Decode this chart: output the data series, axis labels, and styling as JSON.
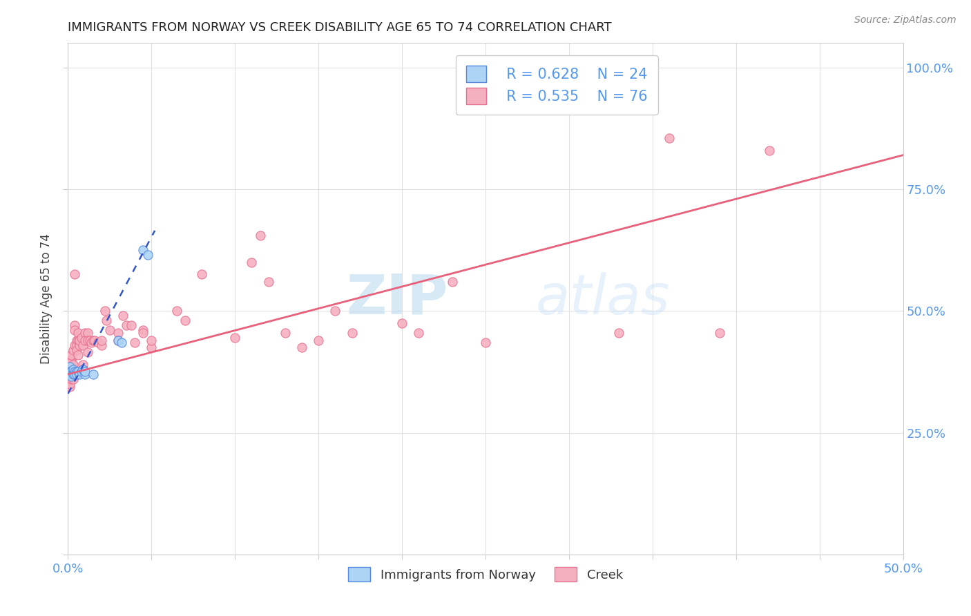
{
  "title": "IMMIGRANTS FROM NORWAY VS CREEK DISABILITY AGE 65 TO 74 CORRELATION CHART",
  "source": "Source: ZipAtlas.com",
  "ylabel": "Disability Age 65 to 74",
  "xlim": [
    0.0,
    0.5
  ],
  "ylim": [
    0.0,
    1.05
  ],
  "xticks": [
    0.0,
    0.05,
    0.1,
    0.15,
    0.2,
    0.25,
    0.3,
    0.35,
    0.4,
    0.45,
    0.5
  ],
  "yticks": [
    0.0,
    0.25,
    0.5,
    0.75,
    1.0
  ],
  "yticklabels": [
    "",
    "25.0%",
    "50.0%",
    "75.0%",
    "100.0%"
  ],
  "norway_color": "#add4f5",
  "creek_color": "#f5b0c0",
  "norway_edge_color": "#5588dd",
  "creek_edge_color": "#e87090",
  "norway_line_color": "#3355cc",
  "creek_line_color": "#e8607a",
  "norway_scatter": [
    [
      0.001,
      0.375
    ],
    [
      0.001,
      0.385
    ],
    [
      0.001,
      0.375
    ],
    [
      0.002,
      0.37
    ],
    [
      0.002,
      0.375
    ],
    [
      0.002,
      0.365
    ],
    [
      0.003,
      0.375
    ],
    [
      0.003,
      0.38
    ],
    [
      0.003,
      0.37
    ],
    [
      0.004,
      0.375
    ],
    [
      0.004,
      0.37
    ],
    [
      0.005,
      0.375
    ],
    [
      0.005,
      0.37
    ],
    [
      0.006,
      0.375
    ],
    [
      0.007,
      0.37
    ],
    [
      0.008,
      0.375
    ],
    [
      0.009,
      0.38
    ],
    [
      0.01,
      0.37
    ],
    [
      0.01,
      0.375
    ],
    [
      0.015,
      0.37
    ],
    [
      0.03,
      0.44
    ],
    [
      0.032,
      0.435
    ],
    [
      0.045,
      0.625
    ],
    [
      0.048,
      0.615
    ]
  ],
  "creek_scatter": [
    [
      0.001,
      0.37
    ],
    [
      0.001,
      0.375
    ],
    [
      0.001,
      0.38
    ],
    [
      0.001,
      0.365
    ],
    [
      0.001,
      0.36
    ],
    [
      0.001,
      0.355
    ],
    [
      0.001,
      0.345
    ],
    [
      0.001,
      0.35
    ],
    [
      0.002,
      0.38
    ],
    [
      0.002,
      0.37
    ],
    [
      0.002,
      0.4
    ],
    [
      0.002,
      0.395
    ],
    [
      0.002,
      0.36
    ],
    [
      0.002,
      0.41
    ],
    [
      0.003,
      0.39
    ],
    [
      0.003,
      0.42
    ],
    [
      0.003,
      0.36
    ],
    [
      0.004,
      0.575
    ],
    [
      0.004,
      0.47
    ],
    [
      0.004,
      0.46
    ],
    [
      0.004,
      0.43
    ],
    [
      0.005,
      0.44
    ],
    [
      0.005,
      0.43
    ],
    [
      0.005,
      0.42
    ],
    [
      0.006,
      0.455
    ],
    [
      0.006,
      0.44
    ],
    [
      0.006,
      0.41
    ],
    [
      0.007,
      0.43
    ],
    [
      0.007,
      0.44
    ],
    [
      0.008,
      0.445
    ],
    [
      0.009,
      0.43
    ],
    [
      0.009,
      0.39
    ],
    [
      0.01,
      0.455
    ],
    [
      0.01,
      0.44
    ],
    [
      0.012,
      0.455
    ],
    [
      0.012,
      0.44
    ],
    [
      0.012,
      0.415
    ],
    [
      0.013,
      0.44
    ],
    [
      0.014,
      0.435
    ],
    [
      0.015,
      0.44
    ],
    [
      0.016,
      0.44
    ],
    [
      0.018,
      0.435
    ],
    [
      0.02,
      0.43
    ],
    [
      0.02,
      0.44
    ],
    [
      0.022,
      0.5
    ],
    [
      0.023,
      0.48
    ],
    [
      0.025,
      0.46
    ],
    [
      0.03,
      0.455
    ],
    [
      0.03,
      0.44
    ],
    [
      0.033,
      0.49
    ],
    [
      0.035,
      0.47
    ],
    [
      0.038,
      0.47
    ],
    [
      0.04,
      0.435
    ],
    [
      0.045,
      0.46
    ],
    [
      0.045,
      0.455
    ],
    [
      0.05,
      0.425
    ],
    [
      0.05,
      0.44
    ],
    [
      0.065,
      0.5
    ],
    [
      0.07,
      0.48
    ],
    [
      0.08,
      0.575
    ],
    [
      0.1,
      0.445
    ],
    [
      0.11,
      0.6
    ],
    [
      0.115,
      0.655
    ],
    [
      0.12,
      0.56
    ],
    [
      0.13,
      0.455
    ],
    [
      0.14,
      0.425
    ],
    [
      0.15,
      0.44
    ],
    [
      0.16,
      0.5
    ],
    [
      0.17,
      0.455
    ],
    [
      0.2,
      0.475
    ],
    [
      0.21,
      0.455
    ],
    [
      0.23,
      0.56
    ],
    [
      0.25,
      0.435
    ],
    [
      0.33,
      0.455
    ],
    [
      0.36,
      0.855
    ],
    [
      0.39,
      0.455
    ],
    [
      0.42,
      0.83
    ]
  ],
  "norway_trend_x": [
    0.0,
    0.052
  ],
  "norway_trend_y": [
    0.33,
    0.665
  ],
  "creek_trend_x": [
    0.0,
    0.5
  ],
  "creek_trend_y": [
    0.37,
    0.82
  ],
  "legend_norway_label": "Immigrants from Norway",
  "legend_creek_label": "Creek",
  "watermark_zip": "ZIP",
  "watermark_atlas": "atlas",
  "background_color": "#ffffff",
  "grid_color": "#e0e0e0",
  "title_color": "#222222",
  "tick_label_color": "#5599ee"
}
